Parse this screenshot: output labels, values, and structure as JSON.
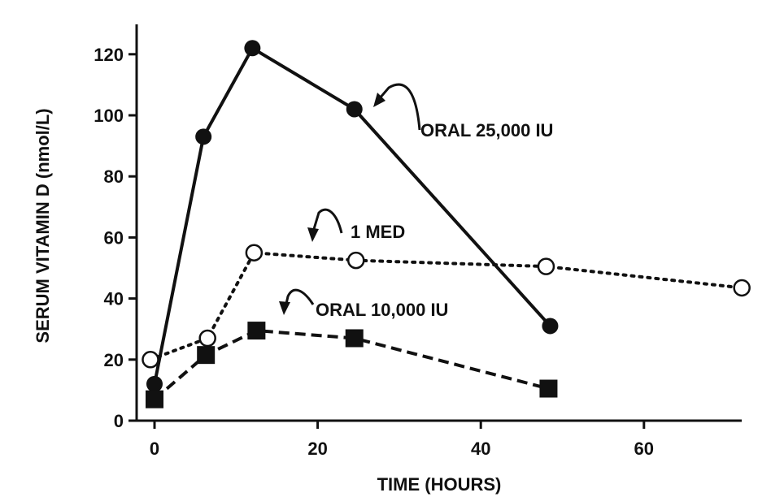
{
  "chart_data": {
    "type": "line",
    "title": "",
    "xlabel": "TIME (HOURS)",
    "ylabel": "SERUM VITAMIN D (nmol/L)",
    "xlim": [
      -1,
      72
    ],
    "ylim": [
      0,
      130
    ],
    "xticks": [
      0,
      20,
      40,
      60
    ],
    "yticks": [
      0,
      20,
      40,
      60,
      80,
      100,
      120
    ],
    "grid": false,
    "legend": "none",
    "series": [
      {
        "name": "ORAL 25,000 IU",
        "marker": "filled-circle",
        "line": "solid",
        "x": [
          0,
          6,
          12,
          24.5,
          48.5
        ],
        "y": [
          12,
          93,
          122,
          102,
          31
        ]
      },
      {
        "name": "1 MED",
        "marker": "open-circle",
        "line": "dotted",
        "x": [
          -0.5,
          6.5,
          12.2,
          24.7,
          48,
          72
        ],
        "y": [
          20,
          27,
          55,
          52.5,
          50.5,
          43.5
        ]
      },
      {
        "name": "ORAL 10,000 IU",
        "marker": "filled-square",
        "line": "dashed",
        "x": [
          0,
          6.3,
          12.5,
          24.5,
          48.3
        ],
        "y": [
          7,
          21.5,
          29.5,
          27,
          10.5
        ]
      }
    ],
    "annotations": [
      {
        "text": "ORAL 25,000 IU",
        "series": 0
      },
      {
        "text": "1 MED",
        "series": 1
      },
      {
        "text": "ORAL 10,000 IU",
        "series": 2
      }
    ]
  }
}
